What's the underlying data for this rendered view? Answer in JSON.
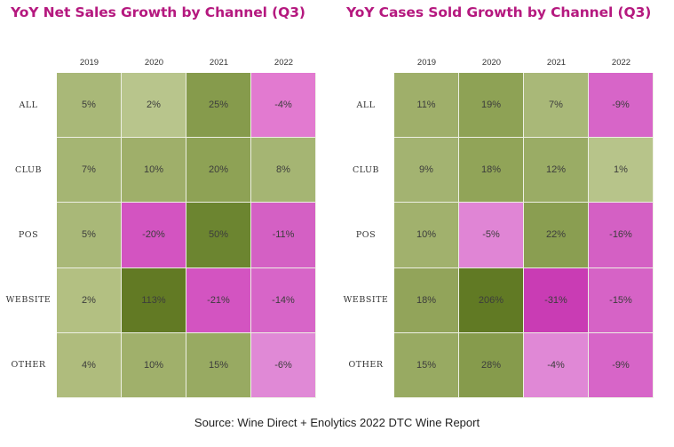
{
  "chart_data": [
    {
      "type": "heatmap",
      "title": "YoY Net Sales Growth by Channel (Q3)",
      "x_categories": [
        "2019",
        "2020",
        "2021",
        "2022"
      ],
      "y_categories": [
        "ALL",
        "CLUB",
        "POS",
        "WEBSITE",
        "OTHER"
      ],
      "values": [
        [
          5,
          2,
          25,
          -4
        ],
        [
          7,
          10,
          20,
          8
        ],
        [
          5,
          -20,
          50,
          -11
        ],
        [
          2,
          113,
          -21,
          -14
        ],
        [
          4,
          10,
          15,
          -6
        ]
      ],
      "labels": [
        [
          "5%",
          "2%",
          "25%",
          "-4%"
        ],
        [
          "7%",
          "10%",
          "20%",
          "8%"
        ],
        [
          "5%",
          "-20%",
          "50%",
          "-11%"
        ],
        [
          "2%",
          "113%",
          "-21%",
          "-14%"
        ],
        [
          "4%",
          "10%",
          "15%",
          "-6%"
        ]
      ],
      "colors": [
        [
          "#a9b878",
          "#b8c58c",
          "#869b4c",
          "#e27ad0"
        ],
        [
          "#a5b573",
          "#9faf6a",
          "#8ea255",
          "#a5b573"
        ],
        [
          "#a9b878",
          "#d354c1",
          "#6c8530",
          "#d460c4"
        ],
        [
          "#b3c082",
          "#627a24",
          "#d354c1",
          "#d765c8"
        ],
        [
          "#afbc7d",
          "#a0b06b",
          "#98aa62",
          "#e089d6"
        ]
      ]
    },
    {
      "type": "heatmap",
      "title": "YoY Cases Sold Growth by Channel (Q3)",
      "x_categories": [
        "2019",
        "2020",
        "2021",
        "2022"
      ],
      "y_categories": [
        "ALL",
        "CLUB",
        "POS",
        "WEBSITE",
        "OTHER"
      ],
      "values": [
        [
          11,
          19,
          7,
          -9
        ],
        [
          9,
          18,
          12,
          1
        ],
        [
          10,
          -5,
          22,
          -16
        ],
        [
          18,
          206,
          -31,
          -15
        ],
        [
          15,
          28,
          -4,
          -9
        ]
      ],
      "labels": [
        [
          "11%",
          "19%",
          "7%",
          "-9%"
        ],
        [
          "9%",
          "18%",
          "12%",
          "1%"
        ],
        [
          "10%",
          "-5%",
          "22%",
          "-16%"
        ],
        [
          "18%",
          "206%",
          "-31%",
          "-15%"
        ],
        [
          "15%",
          "28%",
          "-4%",
          "-9%"
        ]
      ],
      "colors": [
        [
          "#9faf6a",
          "#8ea255",
          "#a9b878",
          "#d765c8"
        ],
        [
          "#a3b371",
          "#91a458",
          "#9aac65",
          "#b7c48a"
        ],
        [
          "#a1b16d",
          "#e085d5",
          "#8a9e51",
          "#d460c4"
        ],
        [
          "#92a45a",
          "#617a24",
          "#c93cb4",
          "#d663c6"
        ],
        [
          "#98aa62",
          "#869b4c",
          "#e088d6",
          "#d765c8"
        ]
      ]
    }
  ],
  "source": "Source: Wine Direct + Enolytics 2022 DTC Wine Report"
}
